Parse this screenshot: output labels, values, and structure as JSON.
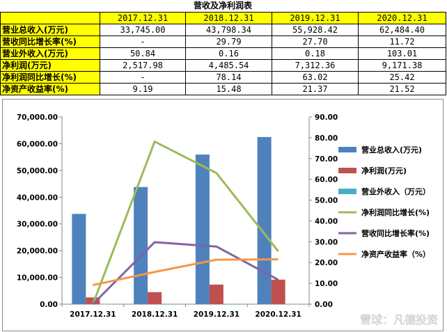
{
  "table": {
    "title": "营收及净利润表",
    "columns": [
      "2017.12.31",
      "2018.12.31",
      "2019.12.31",
      "2020.12.31"
    ],
    "rows": [
      {
        "label": "营业总收入(万元)",
        "values": [
          "33,745.00",
          "43,798.34",
          "55,928.42",
          "62,484.40"
        ]
      },
      {
        "label": "营收同比增长率(%)",
        "values": [
          "-",
          "29.79",
          "27.70",
          "11.72"
        ]
      },
      {
        "label": "营业外收入(万元)",
        "values": [
          "50.84",
          "0.16",
          "0.18",
          "103.01"
        ]
      },
      {
        "label": "净利润(万元)",
        "values": [
          "2,517.98",
          "4,485.54",
          "7,312.36",
          "9,171.38"
        ]
      },
      {
        "label": "净利润同比增长(%)",
        "values": [
          "-",
          "78.14",
          "63.02",
          "25.42"
        ]
      },
      {
        "label": "净资产收益率(%)",
        "values": [
          "9.19",
          "15.48",
          "21.37",
          "21.52"
        ]
      }
    ]
  },
  "watermark": "雪球：凡德投资",
  "colors": {
    "header_bg": "#ffff00",
    "revenue": "#4f81bd",
    "net_profit": "#c0504d",
    "other_income": "#4bacc6",
    "profit_growth": "#9bbb59",
    "revenue_growth": "#8064a2",
    "roe": "#f79646"
  },
  "chart_data": {
    "type": "bar+line",
    "categories": [
      "2017.12.31",
      "2018.12.31",
      "2019.12.31",
      "2020.12.31"
    ],
    "y_left": {
      "min": 0,
      "max": 70000,
      "ticks": [
        "0.00",
        "10,000.00",
        "20,000.00",
        "30,000.00",
        "40,000.00",
        "50,000.00",
        "60,000.00",
        "70,000.00"
      ],
      "tick_values": [
        0,
        10000,
        20000,
        30000,
        40000,
        50000,
        60000,
        70000
      ]
    },
    "y_right": {
      "min": 0,
      "max": 90,
      "ticks": [
        "0.00",
        "10.00",
        "20.00",
        "30.00",
        "40.00",
        "50.00",
        "60.00",
        "70.00",
        "80.00",
        "90.00"
      ],
      "tick_values": [
        0,
        10,
        20,
        30,
        40,
        50,
        60,
        70,
        80,
        90
      ]
    },
    "bar_series": [
      {
        "name": "营业总收入(万元)",
        "color": "#4f81bd",
        "values": [
          33745.0,
          43798.34,
          55928.42,
          62484.4
        ]
      },
      {
        "name": "净利润(万元)",
        "color": "#c0504d",
        "values": [
          2517.98,
          4485.54,
          7312.36,
          9171.38
        ]
      },
      {
        "name": "营业外收入（万元）",
        "color": "#4bacc6",
        "values": [
          50.84,
          0.16,
          0.18,
          103.01
        ]
      }
    ],
    "line_series": [
      {
        "name": "净利润同比增长(%)",
        "color": "#9bbb59",
        "values": [
          0,
          78.14,
          63.02,
          25.42
        ]
      },
      {
        "name": "营收同比增长率(%)",
        "color": "#8064a2",
        "values": [
          0,
          29.79,
          27.7,
          11.72
        ]
      },
      {
        "name": "净资产收益率（%）",
        "color": "#f79646",
        "values": [
          9.19,
          15.48,
          21.37,
          21.52
        ]
      }
    ],
    "legend_position": "right"
  }
}
